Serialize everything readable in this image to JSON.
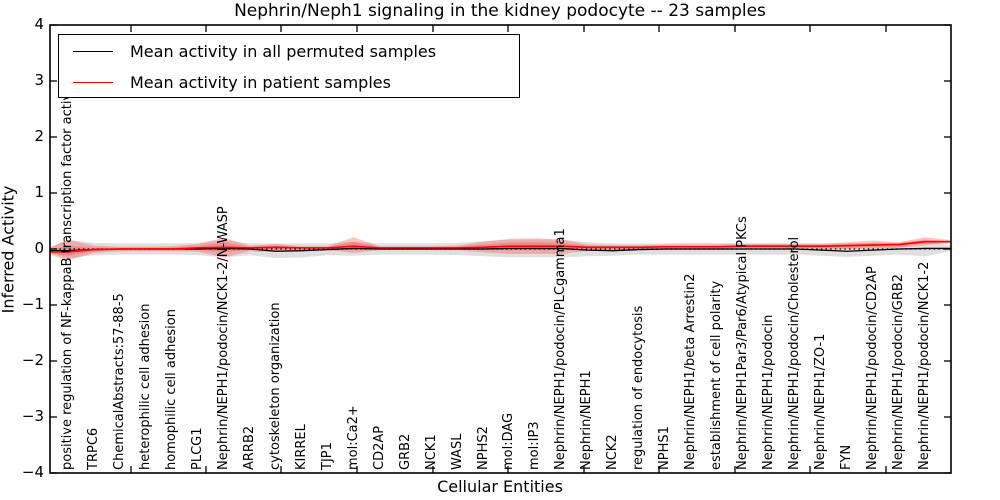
{
  "chart": {
    "title": "Nephrin/Neph1 signaling in the kidney podocyte -- 23 samples",
    "xlabel": "Cellular Entities",
    "ylabel": "Inferred Activity",
    "legend": {
      "permuted_label": "Mean activity in all permuted samples",
      "patient_label": "Mean activity in patient samples"
    }
  },
  "colors": {
    "permuted_line": "#000000",
    "patient_line": "#ff0000",
    "permuted_band": "#aaaaaa",
    "patient_band": "#ff3c3c",
    "frame": "#000000"
  },
  "chart_data": {
    "type": "line",
    "title": "Nephrin/Neph1 signaling in the kidney podocyte -- 23 samples",
    "xlabel": "Cellular Entities",
    "ylabel": "Inferred Activity",
    "ylim": [
      -4,
      4
    ],
    "yticks": [
      4,
      3,
      2,
      1,
      0,
      -1,
      -2,
      -3,
      -4
    ],
    "ytick_labels": [
      "4",
      "3",
      "2",
      "1",
      "0",
      "−1",
      "−2",
      "−3",
      "−4"
    ],
    "zero_reference_line": 0,
    "grid": false,
    "legend_position": "upper left",
    "categories": [
      "positive regulation of NF-kappaB transcription factor activity",
      "TRPC6",
      "ChemicalAbstracts:57-88-5",
      "heterophilic cell adhesion",
      "homophilic cell adhesion",
      "PLCG1",
      "Nephrin/NEPH1/podocin/NCK1-2/N-WASP",
      "ARRB2",
      "cytoskeleton organization",
      "KIRREL",
      "TJP1",
      "mol:Ca2+",
      "CD2AP",
      "GRB2",
      "NCK1",
      "WASL",
      "NPHS2",
      "mol:DAG",
      "mol:IP3",
      "Nephrin/NEPH1/podocin/PLCgamma1",
      "Nephrin/NEPH1",
      "NCK2",
      "regulation of endocytosis",
      "NPHS1",
      "Nephrin/NEPH1/beta Arrestin2",
      "establishment of cell polarity",
      "Nephrin/NEPH1Par3/Par6/Atypical PKCs",
      "Nephrin/NEPH1/podocin",
      "Nephrin/NEPH1/podocin/Cholesterol",
      "Nephrin/NEPH1/ZO-1",
      "FYN",
      "Nephrin/NEPH1/podocin/CD2AP",
      "Nephrin/NEPH1/podocin/GRB2",
      "Nephrin/NEPH1/podocin/NCK1-2"
    ],
    "series": [
      {
        "name": "Mean activity in all permuted samples",
        "color": "#000000",
        "values": [
          -0.03,
          -0.01,
          0,
          0,
          0,
          0,
          0.01,
          0,
          -0.04,
          -0.03,
          -0.01,
          0.01,
          0,
          0,
          0,
          0,
          0,
          0.01,
          0.01,
          0.01,
          -0.02,
          -0.03,
          -0.01,
          0,
          0,
          0,
          0,
          0,
          0,
          -0.02,
          -0.04,
          -0.02,
          0,
          0.01
        ],
        "band_upper": [
          0.16,
          0.11,
          0.1,
          0.1,
          0.1,
          0.11,
          0.16,
          0.1,
          0.1,
          0.1,
          0.1,
          0.13,
          0.1,
          0.1,
          0.1,
          0.11,
          0.14,
          0.17,
          0.17,
          0.17,
          0.12,
          0.1,
          0.1,
          0.1,
          0.11,
          0.11,
          0.11,
          0.11,
          0.11,
          0.1,
          0.1,
          0.11,
          0.11,
          0.15
        ],
        "band_lower": [
          -0.17,
          -0.11,
          -0.1,
          -0.1,
          -0.1,
          -0.11,
          -0.15,
          -0.11,
          -0.16,
          -0.15,
          -0.11,
          -0.12,
          -0.1,
          -0.1,
          -0.1,
          -0.11,
          -0.13,
          -0.15,
          -0.15,
          -0.15,
          -0.13,
          -0.12,
          -0.1,
          -0.1,
          -0.1,
          -0.1,
          -0.1,
          -0.1,
          -0.1,
          -0.12,
          -0.14,
          -0.12,
          -0.1,
          -0.13
        ]
      },
      {
        "name": "Mean activity in patient samples",
        "color": "#ff0000",
        "values": [
          -0.05,
          -0.01,
          0,
          0,
          0,
          0.02,
          0.03,
          0.02,
          0.03,
          0.02,
          0.02,
          0.05,
          0.02,
          0.02,
          0.02,
          0.02,
          0.03,
          0.05,
          0.05,
          0.05,
          0.03,
          0.03,
          0.03,
          0.04,
          0.04,
          0.04,
          0.05,
          0.05,
          0.05,
          0.05,
          0.06,
          0.07,
          0.08,
          0.13
        ],
        "band_upper": [
          0.17,
          0.06,
          0.04,
          0.04,
          0.05,
          0.09,
          0.2,
          0.06,
          0.09,
          0.05,
          0.05,
          0.21,
          0.05,
          0.05,
          0.05,
          0.06,
          0.13,
          0.18,
          0.19,
          0.17,
          0.08,
          0.07,
          0.07,
          0.08,
          0.08,
          0.08,
          0.09,
          0.09,
          0.09,
          0.09,
          0.12,
          0.15,
          0.12,
          0.21
        ],
        "band_lower": [
          -0.2,
          -0.07,
          -0.04,
          -0.04,
          -0.04,
          -0.05,
          -0.15,
          -0.04,
          -0.05,
          -0.03,
          -0.02,
          -0.07,
          -0.02,
          -0.02,
          -0.02,
          -0.02,
          -0.06,
          -0.09,
          -0.09,
          -0.09,
          -0.03,
          -0.02,
          -0.02,
          -0.02,
          -0.02,
          -0.02,
          -0.01,
          -0.01,
          -0.01,
          -0.01,
          0.0,
          0.01,
          0.02,
          0.07
        ]
      }
    ]
  }
}
